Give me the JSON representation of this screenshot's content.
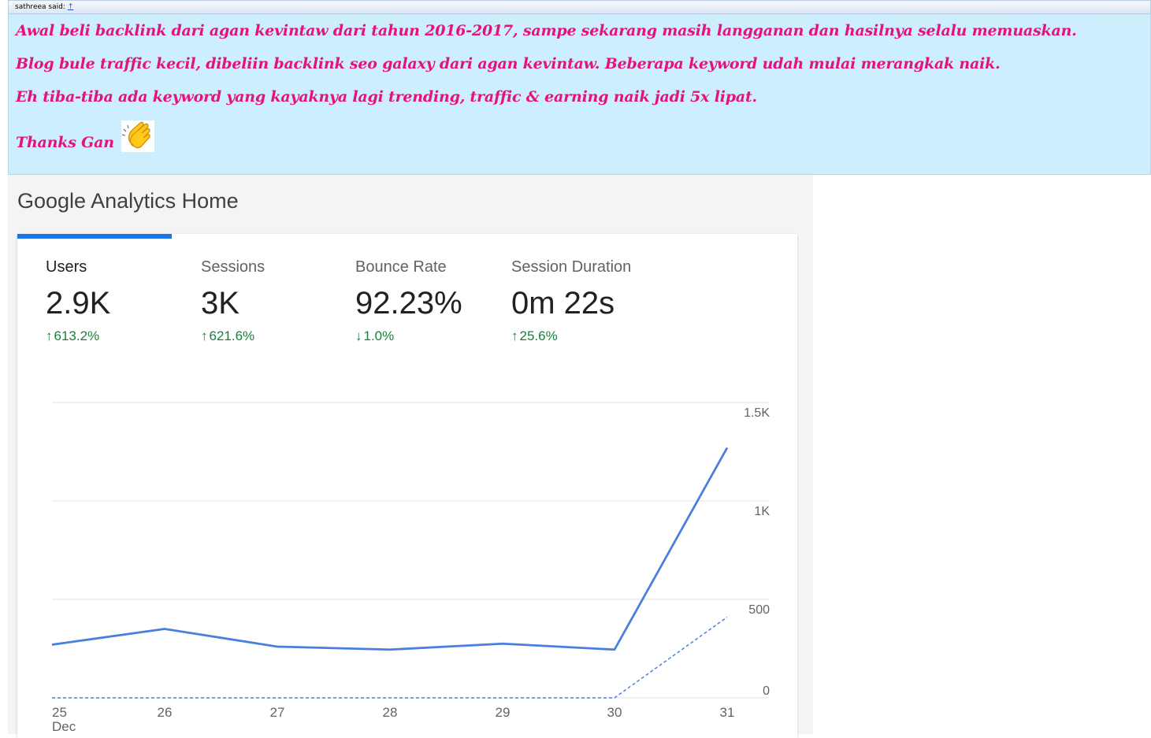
{
  "quote": {
    "author": "sathreea said:",
    "arrow": "↑",
    "lines": [
      "Awal beli backlink dari agan kevintaw dari tahun 2016-2017, sampe sekarang masih langganan dan hasilnya selalu memuaskan.",
      "Blog bule traffic kecil, dibeliin backlink seo galaxy dari agan kevintaw. Beberapa keyword udah mulai merangkak naik.",
      "Eh tiba-tiba ada keyword yang kayaknya lagi trending, traffic & earning naik jadi 5x lipat.",
      "Thanks Gan"
    ],
    "emoji": "clapping-hands-icon",
    "text_color": "#e3127d",
    "bg_color": "#cdeefd"
  },
  "ga": {
    "title": "Google Analytics Home",
    "metrics": [
      {
        "label": "Users",
        "value": "2.9K",
        "arrow": "↑",
        "delta": "613.2%",
        "active": true
      },
      {
        "label": "Sessions",
        "value": "3K",
        "arrow": "↑",
        "delta": "621.6%",
        "active": false
      },
      {
        "label": "Bounce Rate",
        "value": "92.23%",
        "arrow": "↓",
        "delta": "1.0%",
        "active": false
      },
      {
        "label": "Session Duration",
        "value": "0m 22s",
        "arrow": "↑",
        "delta": "25.6%",
        "active": false
      }
    ],
    "accent_color": "#1a73e8",
    "delta_color": "#188038"
  },
  "chart_data": {
    "type": "line",
    "title": "",
    "xlabel": "",
    "ylabel": "",
    "categories": [
      "25",
      "26",
      "27",
      "28",
      "29",
      "30",
      "31"
    ],
    "x_sublabel": "Dec",
    "y_ticks": [
      "0",
      "500",
      "1K",
      "1.5K"
    ],
    "ylim": [
      0,
      1500
    ],
    "grid": true,
    "series": [
      {
        "values": [
          270,
          350,
          260,
          245,
          275,
          245,
          1270
        ],
        "style": "solid",
        "color": "#4a7fdd"
      },
      {
        "values": [
          0,
          0,
          0,
          0,
          0,
          0,
          410
        ],
        "style": "dashed",
        "color": "#4a7fdd"
      }
    ]
  }
}
